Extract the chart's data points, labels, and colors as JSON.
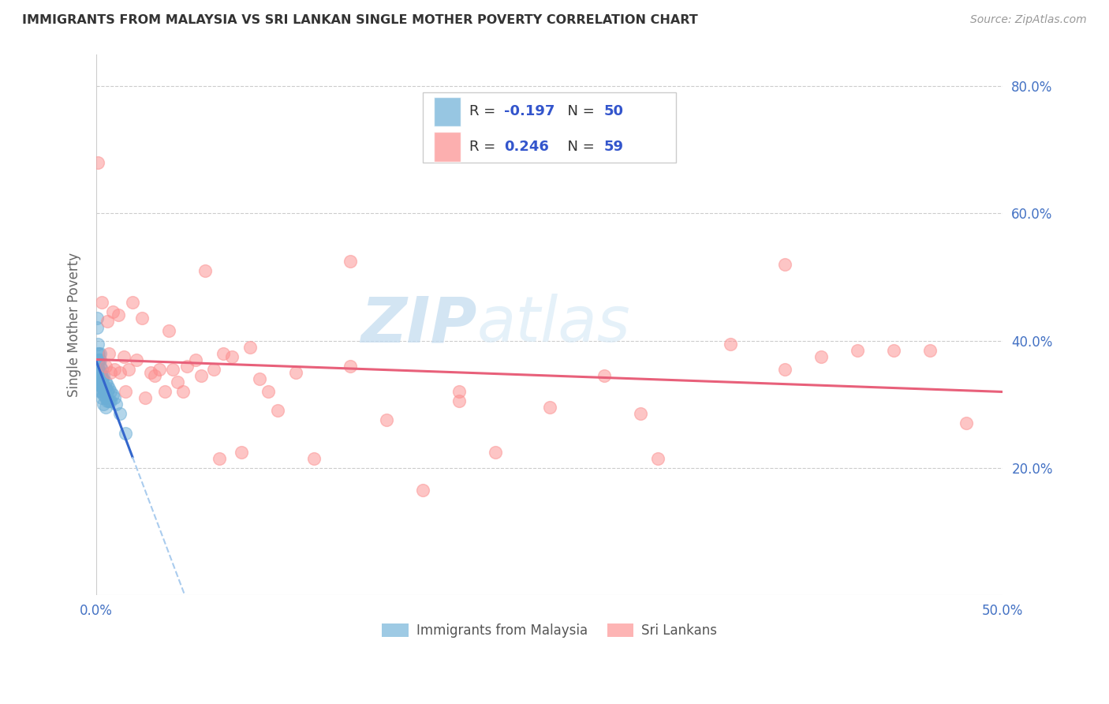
{
  "title": "IMMIGRANTS FROM MALAYSIA VS SRI LANKAN SINGLE MOTHER POVERTY CORRELATION CHART",
  "source": "Source: ZipAtlas.com",
  "ylabel": "Single Mother Poverty",
  "xmin": 0.0,
  "xmax": 0.5,
  "ymin": 0.0,
  "ymax": 0.85,
  "xtick_positions": [
    0.0,
    0.5
  ],
  "xtick_labels": [
    "0.0%",
    "50.0%"
  ],
  "yticks": [
    0.2,
    0.4,
    0.6,
    0.8
  ],
  "ytick_labels": [
    "20.0%",
    "40.0%",
    "60.0%",
    "80.0%"
  ],
  "series1_color": "#6baed6",
  "series2_color": "#fc8d8d",
  "series1_label": "Immigrants from Malaysia",
  "series2_label": "Sri Lankans",
  "R1": -0.197,
  "N1": 50,
  "R2": 0.246,
  "N2": 59,
  "series1_x": [
    0.0005,
    0.0005,
    0.0008,
    0.001,
    0.001,
    0.001,
    0.0012,
    0.0012,
    0.0015,
    0.0015,
    0.0015,
    0.0015,
    0.002,
    0.002,
    0.002,
    0.002,
    0.002,
    0.002,
    0.0025,
    0.0025,
    0.003,
    0.003,
    0.003,
    0.003,
    0.003,
    0.003,
    0.0035,
    0.0035,
    0.004,
    0.004,
    0.004,
    0.004,
    0.004,
    0.0045,
    0.005,
    0.005,
    0.005,
    0.005,
    0.006,
    0.006,
    0.006,
    0.007,
    0.007,
    0.008,
    0.008,
    0.009,
    0.01,
    0.011,
    0.013,
    0.016
  ],
  "series1_y": [
    0.435,
    0.42,
    0.34,
    0.395,
    0.38,
    0.355,
    0.37,
    0.355,
    0.38,
    0.37,
    0.355,
    0.34,
    0.38,
    0.37,
    0.36,
    0.35,
    0.33,
    0.32,
    0.345,
    0.33,
    0.355,
    0.345,
    0.34,
    0.33,
    0.32,
    0.31,
    0.34,
    0.325,
    0.345,
    0.33,
    0.325,
    0.315,
    0.3,
    0.32,
    0.335,
    0.325,
    0.31,
    0.295,
    0.33,
    0.32,
    0.305,
    0.325,
    0.305,
    0.32,
    0.305,
    0.315,
    0.31,
    0.3,
    0.285,
    0.255
  ],
  "series2_x": [
    0.001,
    0.003,
    0.005,
    0.006,
    0.007,
    0.008,
    0.009,
    0.01,
    0.012,
    0.013,
    0.015,
    0.016,
    0.018,
    0.02,
    0.022,
    0.025,
    0.027,
    0.03,
    0.032,
    0.035,
    0.038,
    0.04,
    0.042,
    0.045,
    0.048,
    0.05,
    0.055,
    0.058,
    0.06,
    0.065,
    0.068,
    0.07,
    0.075,
    0.08,
    0.085,
    0.09,
    0.095,
    0.1,
    0.11,
    0.12,
    0.14,
    0.16,
    0.18,
    0.2,
    0.22,
    0.25,
    0.28,
    0.31,
    0.35,
    0.38,
    0.4,
    0.42,
    0.44,
    0.46,
    0.48,
    0.14,
    0.2,
    0.3,
    0.38
  ],
  "series2_y": [
    0.68,
    0.46,
    0.36,
    0.43,
    0.38,
    0.35,
    0.445,
    0.355,
    0.44,
    0.35,
    0.375,
    0.32,
    0.355,
    0.46,
    0.37,
    0.435,
    0.31,
    0.35,
    0.345,
    0.355,
    0.32,
    0.415,
    0.355,
    0.335,
    0.32,
    0.36,
    0.37,
    0.345,
    0.51,
    0.355,
    0.215,
    0.38,
    0.375,
    0.225,
    0.39,
    0.34,
    0.32,
    0.29,
    0.35,
    0.215,
    0.36,
    0.275,
    0.165,
    0.32,
    0.225,
    0.295,
    0.345,
    0.215,
    0.395,
    0.355,
    0.375,
    0.385,
    0.385,
    0.385,
    0.27,
    0.525,
    0.305,
    0.285,
    0.52
  ],
  "watermark_zip": "ZIP",
  "watermark_atlas": "atlas",
  "background_color": "#ffffff",
  "grid_color": "#cccccc",
  "title_color": "#333333",
  "tick_color": "#4472c4",
  "trend1_color": "#3366cc",
  "trend1_dash_color": "#aaccee",
  "trend2_color": "#e8607a"
}
